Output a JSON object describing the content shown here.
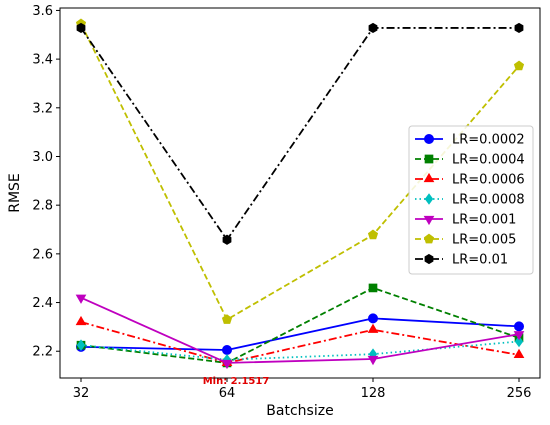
{
  "chart_data": {
    "type": "line",
    "title": "",
    "xlabel": "Batchsize",
    "ylabel": "RMSE",
    "categories": [
      "32",
      "64",
      "128",
      "256"
    ],
    "ylim": [
      2.09,
      3.61
    ],
    "yticks": [
      2.2,
      2.4,
      2.6,
      2.8,
      3.0,
      3.2,
      3.4,
      3.6
    ],
    "ytick_labels": [
      "2.2",
      "2.4",
      "2.6",
      "2.8",
      "3.0",
      "3.2",
      "3.4",
      "3.6"
    ],
    "grid": false,
    "legend_position": "center-right",
    "series": [
      {
        "name": "LR=0.0002",
        "values": [
          2.218,
          2.205,
          2.335,
          2.302
        ],
        "color": "#0000ff",
        "linestyle": "solid",
        "marker": "circle"
      },
      {
        "name": "LR=0.0004",
        "values": [
          2.225,
          2.152,
          2.46,
          2.255
        ],
        "color": "#008000",
        "linestyle": "dashed",
        "marker": "square"
      },
      {
        "name": "LR=0.0006",
        "values": [
          2.32,
          2.152,
          2.288,
          2.185
        ],
        "color": "#ff0000",
        "linestyle": "dashdot",
        "marker": "triangle-up"
      },
      {
        "name": "LR=0.0008",
        "values": [
          2.225,
          2.165,
          2.188,
          2.24
        ],
        "color": "#00bfbf",
        "linestyle": "dotted",
        "marker": "diamond"
      },
      {
        "name": "LR=0.001",
        "values": [
          2.42,
          2.152,
          2.168,
          2.27
        ],
        "color": "#bf00bf",
        "linestyle": "solid",
        "marker": "triangle-down"
      },
      {
        "name": "LR=0.005",
        "values": [
          3.545,
          2.33,
          2.678,
          3.372
        ],
        "color": "#bfbf00",
        "linestyle": "dashed",
        "marker": "pentagon"
      },
      {
        "name": "LR=0.01",
        "values": [
          3.528,
          2.658,
          3.528,
          3.528
        ],
        "color": "#000000",
        "linestyle": "dashdot",
        "marker": "hexagon"
      }
    ],
    "annotations": [
      {
        "text": "Min: 2.1517",
        "x": "64",
        "y": 2.1517,
        "color": "#e00000"
      }
    ]
  }
}
